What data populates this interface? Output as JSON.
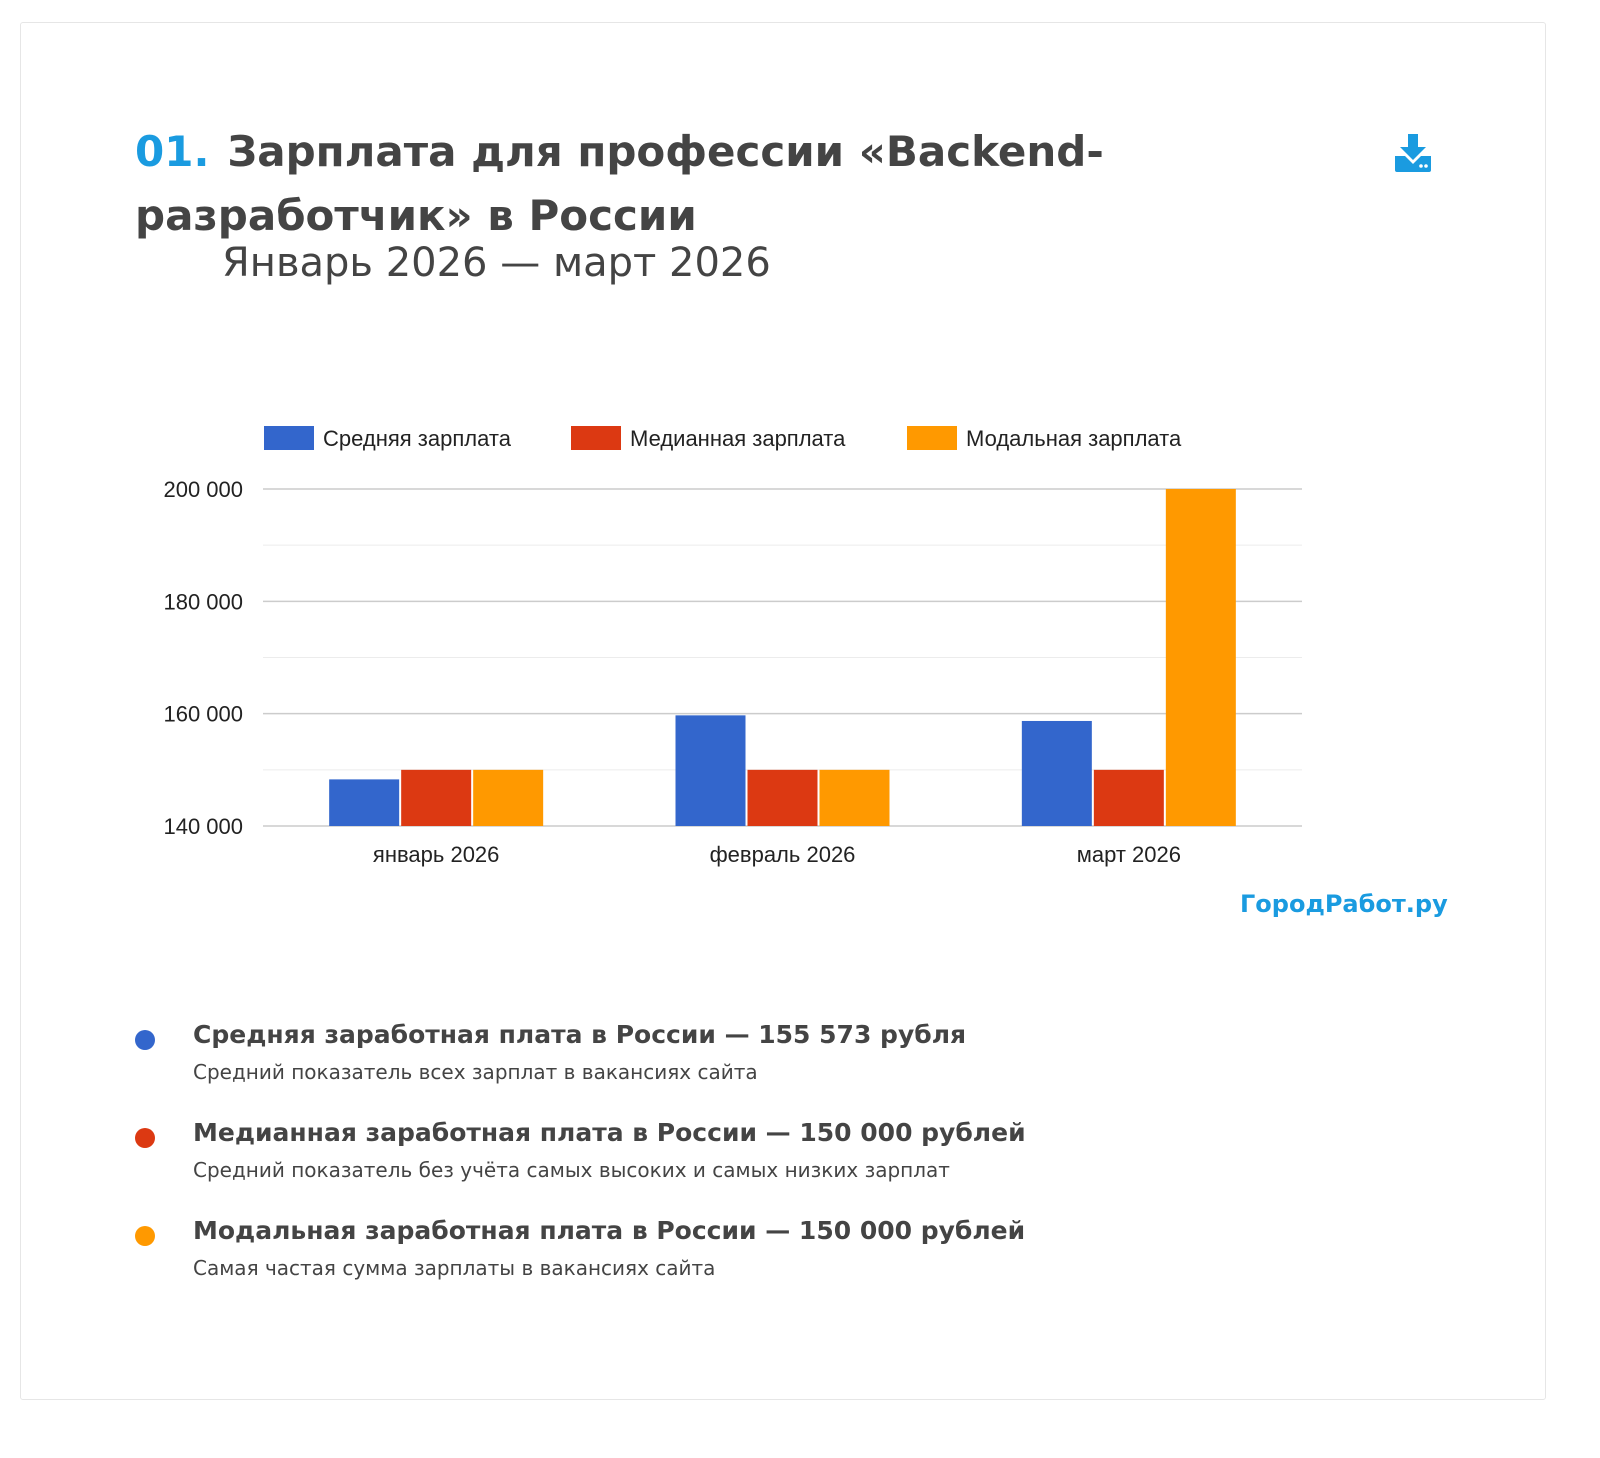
{
  "header": {
    "number": "01.",
    "title": "Зарплата для профессии «Backend-разработчик» в России",
    "period": "Январь 2026 — март 2026",
    "download_icon": "download-icon"
  },
  "brand": "ГородРабот.ру",
  "chart_data": {
    "type": "bar",
    "categories": [
      "январь 2026",
      "февраль 2026",
      "март 2026"
    ],
    "series": [
      {
        "name": "Средняя зарплата",
        "color": "#3366cc",
        "values": [
          148300,
          159700,
          158700
        ]
      },
      {
        "name": "Медианная зарплата",
        "color": "#dc3912",
        "values": [
          150000,
          150000,
          150000
        ]
      },
      {
        "name": "Модальная зарплата",
        "color": "#ff9900",
        "values": [
          150000,
          150000,
          200000
        ]
      }
    ],
    "ylim": [
      140000,
      200000
    ],
    "yticks": [
      140000,
      160000,
      180000,
      200000
    ],
    "ytick_labels": [
      "140 000",
      "160 000",
      "180 000",
      "200 000"
    ],
    "minor_gridlines": [
      150000,
      170000,
      190000
    ],
    "legend": "top",
    "grid": true
  },
  "summary": [
    {
      "color": "#3366cc",
      "title": "Средняя заработная плата в России — 155 573 рубля",
      "desc": "Средний показатель всех зарплат в вакансиях сайта"
    },
    {
      "color": "#dc3912",
      "title": "Медианная заработная плата в России — 150 000 рублей",
      "desc": "Средний показатель без учёта самых высоких и самых низких зарплат"
    },
    {
      "color": "#ff9900",
      "title": "Модальная заработная плата в России — 150 000 рублей",
      "desc": "Самая частая сумма зарплаты в вакансиях сайта"
    }
  ]
}
